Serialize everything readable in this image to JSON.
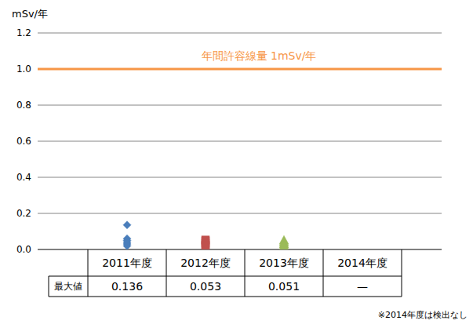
{
  "chart_data": {
    "type": "scatter",
    "y_label": "mSv/年",
    "categories": [
      "2011年度",
      "2012年度",
      "2013年度",
      "2014年度"
    ],
    "series": [
      {
        "color": "#4a7ebb",
        "marker": "diamond",
        "values": [
          [
            0.136,
            0.06,
            0.05,
            0.04,
            0.03,
            0.02
          ],
          null,
          null,
          null
        ]
      },
      {
        "color": "#c0504d",
        "marker": "square",
        "values": [
          null,
          [
            0.053,
            0.045,
            0.035,
            0.025,
            0.02
          ],
          null,
          null
        ]
      },
      {
        "color": "#9bbb59",
        "marker": "triangle",
        "values": [
          null,
          null,
          [
            0.051,
            0.04,
            0.03,
            0.02
          ],
          null
        ]
      }
    ],
    "ylim": [
      0,
      1.2
    ],
    "yticks": [
      {
        "value": 0,
        "label": "0.0"
      },
      0.2,
      0.4,
      0.6,
      0.8,
      {
        "value": 1,
        "label": "1.0"
      },
      1.2
    ],
    "grid": true,
    "reference_line": {
      "value": 1,
      "label": "年間許容線量 1mSv/年",
      "color": "#f79646"
    },
    "table": {
      "header": "最大値",
      "values": [
        0.136,
        0.053,
        0.051,
        null
      ],
      "missing_label": "—"
    },
    "note": "※2014年度は検出なし"
  }
}
